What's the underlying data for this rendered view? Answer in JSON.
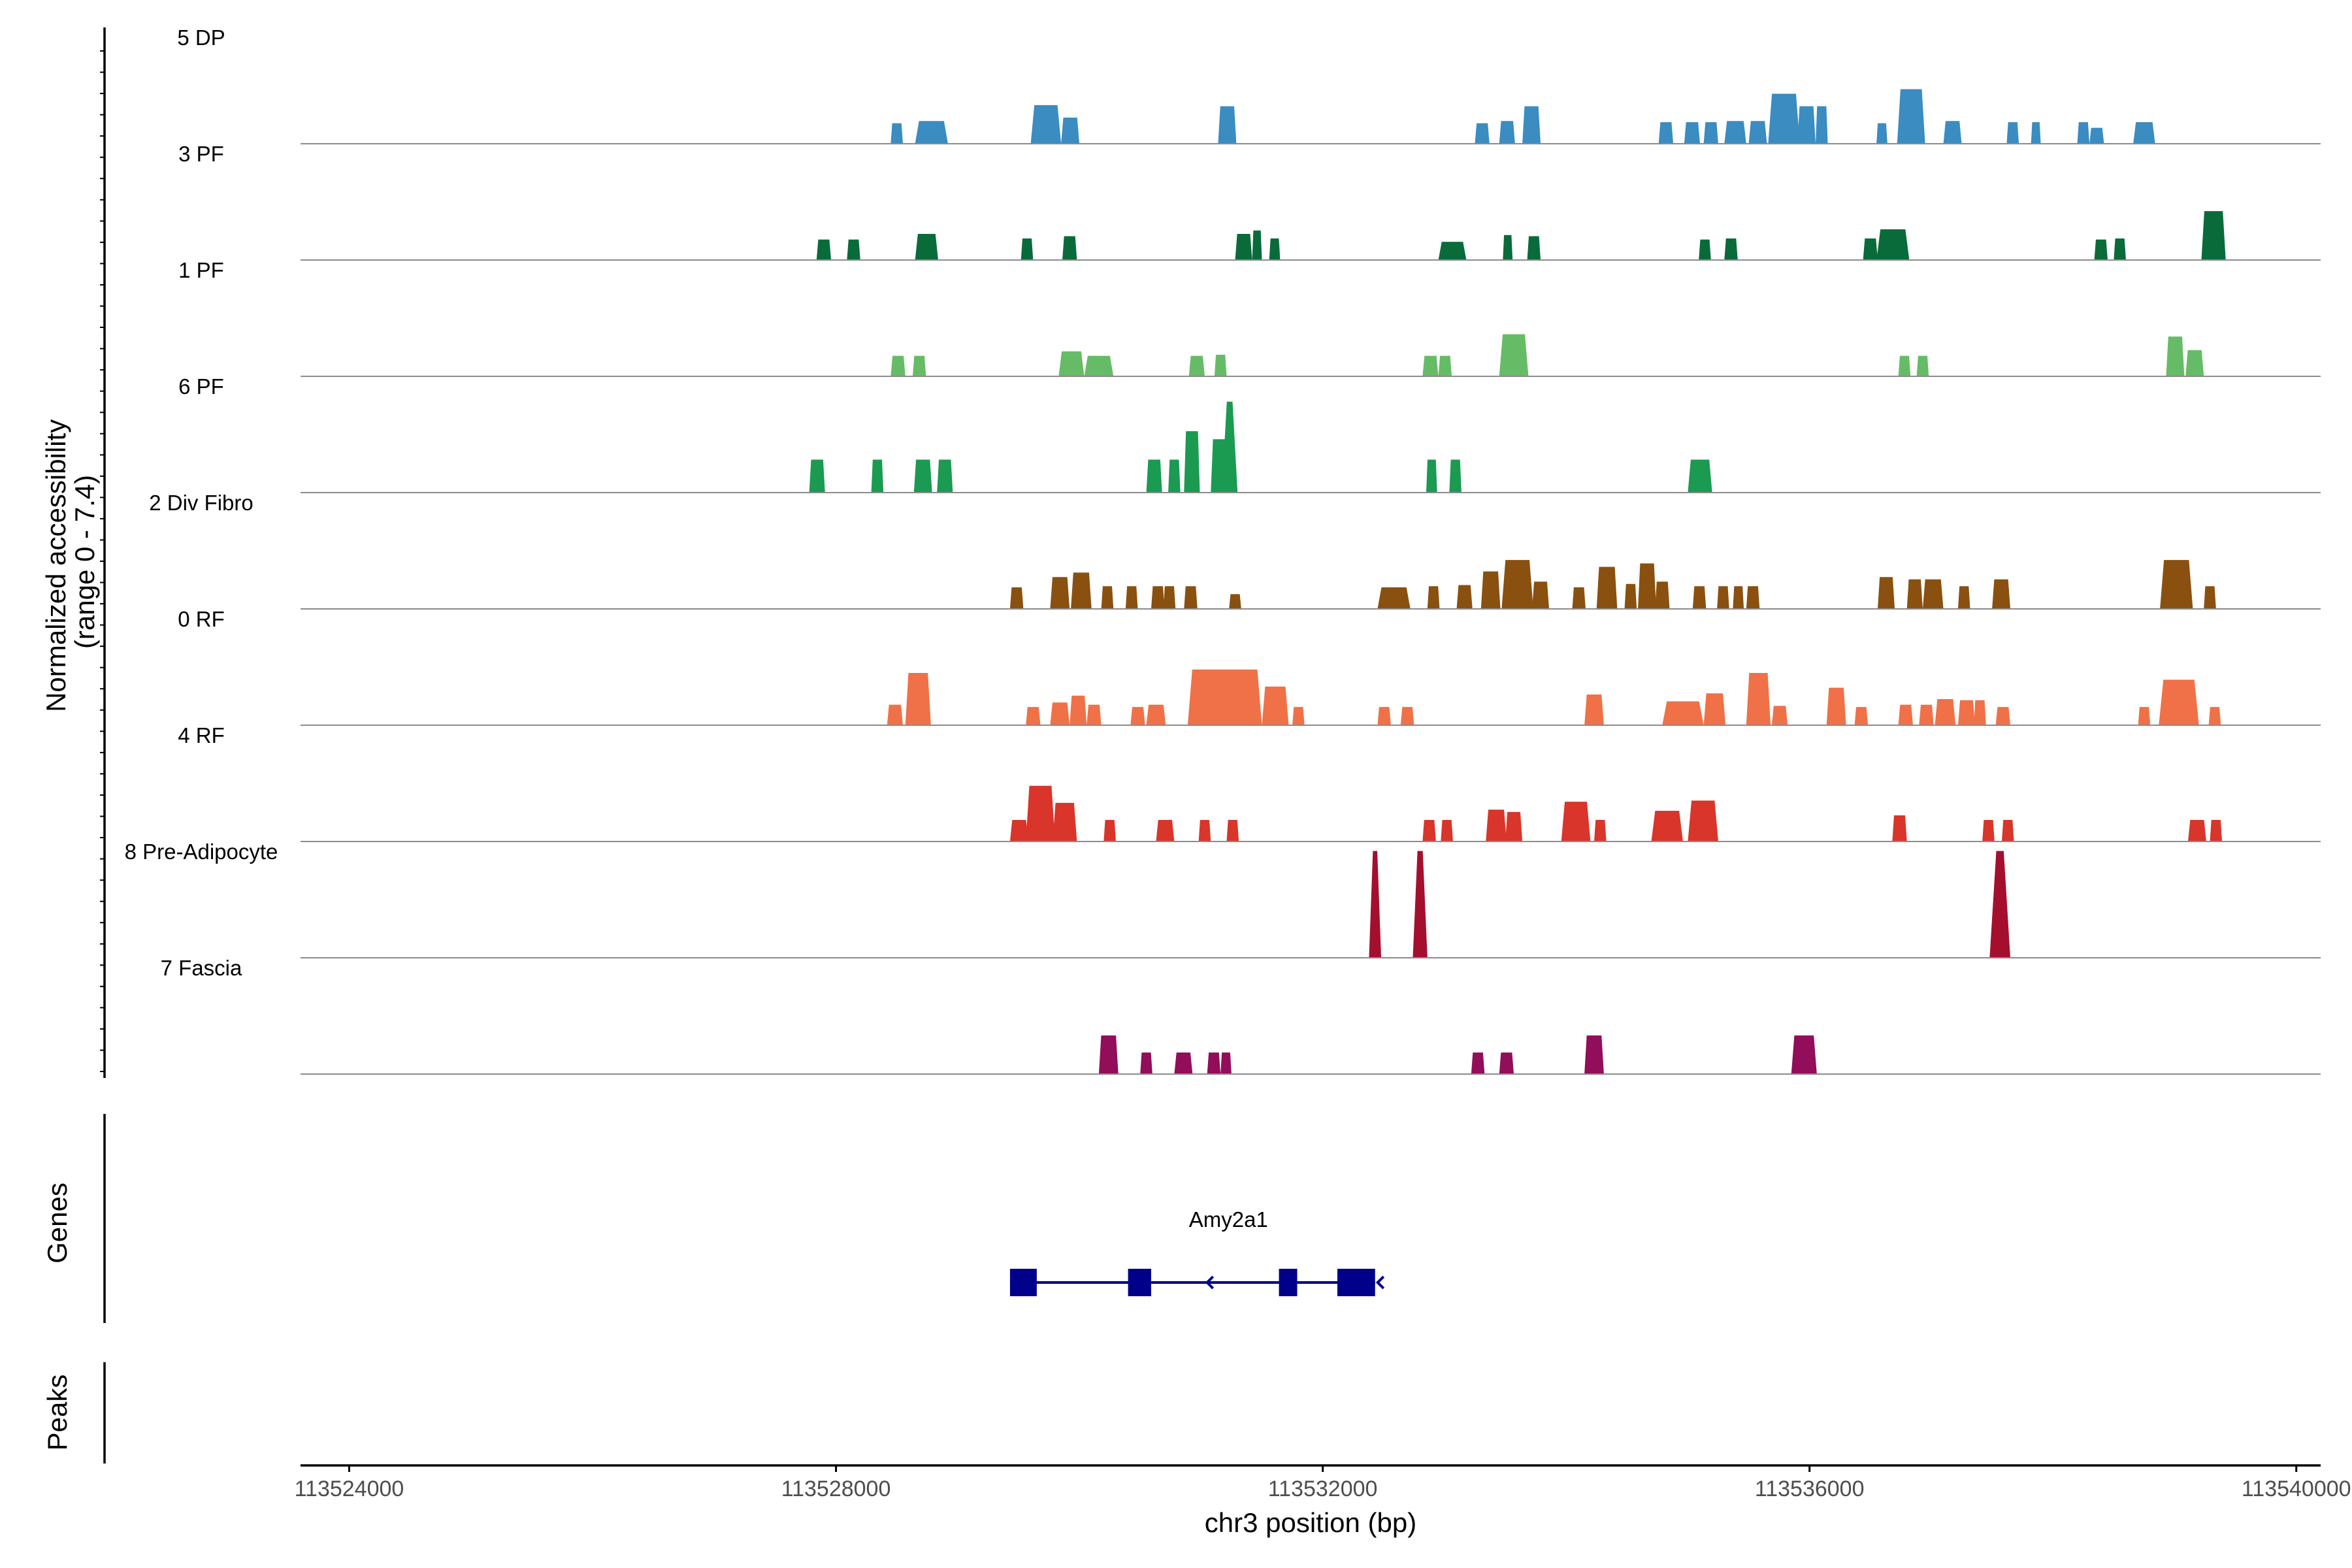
{
  "chart_data": {
    "type": "area",
    "title": "",
    "ylabel": "Normalized accessibility\n(range 0 - 7.4)",
    "ylabel_lines": [
      "Normalized accessibility",
      "(range 0 - 7.4)"
    ],
    "ylim": [
      0,
      7.4
    ],
    "xlabel": "chr3 position (bp)",
    "xlim": [
      113523600,
      113540200
    ],
    "x_ticks": [
      113524000,
      113528000,
      113532000,
      113536000,
      113540000
    ],
    "x_tick_labels": [
      "113524000",
      "113528000",
      "113532000",
      "113536000",
      "113540000"
    ],
    "series": [
      {
        "name": "5 DP",
        "color": "#3a8cc1",
        "peaks": [
          [
            113528450,
            113528550,
            1.8
          ],
          [
            113528650,
            113528920,
            2.0
          ],
          [
            113529600,
            113529850,
            3.4
          ],
          [
            113529850,
            113530000,
            2.3
          ],
          [
            113531140,
            113531290,
            3.3
          ],
          [
            113533250,
            113533370,
            1.8
          ],
          [
            113533450,
            113533580,
            2.0
          ],
          [
            113533640,
            113533790,
            3.3
          ],
          [
            113534760,
            113534880,
            1.9
          ],
          [
            113534970,
            113535100,
            1.9
          ],
          [
            113535130,
            113535250,
            1.9
          ],
          [
            113535300,
            113535480,
            2.0
          ],
          [
            113535500,
            113535650,
            2.0
          ],
          [
            113535660,
            113535920,
            4.4
          ],
          [
            113535900,
            113536050,
            3.3
          ],
          [
            113536050,
            113536150,
            3.3
          ],
          [
            113536550,
            113536640,
            1.8
          ],
          [
            113536720,
            113536950,
            4.8
          ],
          [
            113537100,
            113537250,
            2.0
          ],
          [
            113537620,
            113537720,
            1.9
          ],
          [
            113537820,
            113537900,
            1.9
          ],
          [
            113538200,
            113538300,
            1.9
          ],
          [
            113538300,
            113538420,
            1.4
          ],
          [
            113538660,
            113538840,
            1.9
          ]
        ]
      },
      {
        "name": "3 PF",
        "color": "#0a6b3a",
        "peaks": [
          [
            113527840,
            113527960,
            1.8
          ],
          [
            113528090,
            113528200,
            1.8
          ],
          [
            113528650,
            113528840,
            2.3
          ],
          [
            113529520,
            113529620,
            1.9
          ],
          [
            113529860,
            113529980,
            2.1
          ],
          [
            113531280,
            113531420,
            2.3
          ],
          [
            113531420,
            113531500,
            2.6
          ],
          [
            113531560,
            113531650,
            1.9
          ],
          [
            113532950,
            113533180,
            1.6
          ],
          [
            113533480,
            113533560,
            2.2
          ],
          [
            113533680,
            113533790,
            2.1
          ],
          [
            113535090,
            113535190,
            1.8
          ],
          [
            113535300,
            113535410,
            1.9
          ],
          [
            113536440,
            113536560,
            1.9
          ],
          [
            113536550,
            113536820,
            2.7
          ],
          [
            113538340,
            113538450,
            1.8
          ],
          [
            113538500,
            113538600,
            1.9
          ],
          [
            113539220,
            113539420,
            4.3
          ]
        ]
      },
      {
        "name": "1 PF",
        "color": "#66bc66",
        "peaks": [
          [
            113528450,
            113528570,
            1.8
          ],
          [
            113528630,
            113528740,
            1.8
          ],
          [
            113529830,
            113530040,
            2.2
          ],
          [
            113530040,
            113530280,
            1.8
          ],
          [
            113530900,
            113531030,
            1.8
          ],
          [
            113531110,
            113531210,
            1.9
          ],
          [
            113532820,
            113532950,
            1.8
          ],
          [
            113532950,
            113533060,
            1.8
          ],
          [
            113533450,
            113533690,
            3.7
          ],
          [
            113536730,
            113536830,
            1.8
          ],
          [
            113536880,
            113536980,
            1.8
          ],
          [
            113538930,
            113539080,
            3.5
          ],
          [
            113539090,
            113539240,
            2.3
          ]
        ]
      },
      {
        "name": "6 PF",
        "color": "#1b9a52",
        "peaks": [
          [
            113527780,
            113527910,
            2.9
          ],
          [
            113528290,
            113528390,
            2.9
          ],
          [
            113528640,
            113528790,
            2.9
          ],
          [
            113528830,
            113528960,
            2.9
          ],
          [
            113530550,
            113530680,
            2.9
          ],
          [
            113530730,
            113530830,
            2.9
          ],
          [
            113530860,
            113530990,
            5.4
          ],
          [
            113531080,
            113531230,
            4.7
          ],
          [
            113531170,
            113531300,
            8.0
          ],
          [
            113532850,
            113532940,
            2.9
          ],
          [
            113533040,
            113533140,
            2.9
          ],
          [
            113535000,
            113535200,
            2.9
          ]
        ]
      },
      {
        "name": "2 Div Fibro",
        "color": "#8a5010",
        "peaks": [
          [
            113529430,
            113529540,
            1.9
          ],
          [
            113529760,
            113529920,
            2.8
          ],
          [
            113529930,
            113530100,
            3.2
          ],
          [
            113530180,
            113530280,
            2.0
          ],
          [
            113530380,
            113530480,
            2.0
          ],
          [
            113530590,
            113530700,
            2.0
          ],
          [
            113530690,
            113530790,
            2.0
          ],
          [
            113530860,
            113530970,
            2.0
          ],
          [
            113531230,
            113531330,
            1.3
          ],
          [
            113532450,
            113532720,
            1.9
          ],
          [
            113532860,
            113532960,
            2.0
          ],
          [
            113533100,
            113533230,
            2.1
          ],
          [
            113533300,
            113533460,
            3.3
          ],
          [
            113533470,
            113533730,
            4.3
          ],
          [
            113533720,
            113533860,
            2.4
          ],
          [
            113534050,
            113534160,
            1.9
          ],
          [
            113534250,
            113534420,
            3.7
          ],
          [
            113534480,
            113534580,
            2.2
          ],
          [
            113534590,
            113534740,
            4.0
          ],
          [
            113534730,
            113534850,
            2.4
          ],
          [
            113535040,
            113535150,
            2.0
          ],
          [
            113535240,
            113535340,
            2.0
          ],
          [
            113535370,
            113535460,
            2.0
          ],
          [
            113535480,
            113535590,
            2.0
          ],
          [
            113536560,
            113536700,
            2.8
          ],
          [
            113536800,
            113536930,
            2.6
          ],
          [
            113536930,
            113537100,
            2.6
          ],
          [
            113537220,
            113537320,
            2.0
          ],
          [
            113537500,
            113537650,
            2.6
          ],
          [
            113538880,
            113539150,
            4.3
          ],
          [
            113539240,
            113539340,
            2.0
          ]
        ]
      },
      {
        "name": "0 RF",
        "color": "#f07147",
        "peaks": [
          [
            113528420,
            113528550,
            1.8
          ],
          [
            113528570,
            113528780,
            4.6
          ],
          [
            113529560,
            113529680,
            1.6
          ],
          [
            113529760,
            113529920,
            2.0
          ],
          [
            113529920,
            113530060,
            2.6
          ],
          [
            113530060,
            113530180,
            1.8
          ],
          [
            113530420,
            113530540,
            1.6
          ],
          [
            113530550,
            113530710,
            1.8
          ],
          [
            113530890,
            113531500,
            4.9
          ],
          [
            113531500,
            113531720,
            3.4
          ],
          [
            113531750,
            113531850,
            1.6
          ],
          [
            113532450,
            113532560,
            1.6
          ],
          [
            113532640,
            113532750,
            1.6
          ],
          [
            113534150,
            113534310,
            2.7
          ],
          [
            113534790,
            113535130,
            2.1
          ],
          [
            113535130,
            113535310,
            2.8
          ],
          [
            113535480,
            113535680,
            4.6
          ],
          [
            113535690,
            113535820,
            1.7
          ],
          [
            113536140,
            113536300,
            3.3
          ],
          [
            113536370,
            113536480,
            1.6
          ],
          [
            113536730,
            113536850,
            1.8
          ],
          [
            113536900,
            113537020,
            1.8
          ],
          [
            113537030,
            113537200,
            2.3
          ],
          [
            113537220,
            113537360,
            2.2
          ],
          [
            113537350,
            113537450,
            2.2
          ],
          [
            113537530,
            113537650,
            1.6
          ],
          [
            113538700,
            113538800,
            1.6
          ],
          [
            113538870,
            113539200,
            4.0
          ],
          [
            113539280,
            113539380,
            1.6
          ]
        ]
      },
      {
        "name": "4 RF",
        "color": "#d9352a",
        "peaks": [
          [
            113529430,
            113529580,
            1.9
          ],
          [
            113529560,
            113529800,
            4.9
          ],
          [
            113529780,
            113529980,
            3.4
          ],
          [
            113530200,
            113530300,
            1.9
          ],
          [
            113530630,
            113530780,
            1.9
          ],
          [
            113530980,
            113531080,
            1.9
          ],
          [
            113531210,
            113531310,
            1.9
          ],
          [
            113532820,
            113532930,
            1.9
          ],
          [
            113532970,
            113533070,
            1.9
          ],
          [
            113533340,
            113533510,
            2.8
          ],
          [
            113533500,
            113533640,
            2.6
          ],
          [
            113533960,
            113534200,
            3.5
          ],
          [
            113534230,
            113534330,
            1.9
          ],
          [
            113534700,
            113534960,
            2.7
          ],
          [
            113535000,
            113535250,
            3.6
          ],
          [
            113536680,
            113536800,
            2.3
          ],
          [
            113537420,
            113537520,
            1.9
          ],
          [
            113537580,
            113537680,
            1.9
          ],
          [
            113539110,
            113539260,
            1.9
          ],
          [
            113539290,
            113539390,
            1.9
          ]
        ]
      },
      {
        "name": "8 Pre-Adipocyte",
        "color": "#a50f2e",
        "peaks": [
          [
            113532380,
            113532480,
            9.4
          ],
          [
            113532740,
            113532860,
            9.4
          ],
          [
            113537480,
            113537650,
            9.4
          ]
        ]
      },
      {
        "name": "7 Fascia",
        "color": "#920d5a",
        "peaks": [
          [
            113530160,
            113530320,
            3.4
          ],
          [
            113530500,
            113530600,
            1.9
          ],
          [
            113530780,
            113530930,
            1.9
          ],
          [
            113531050,
            113531160,
            1.9
          ],
          [
            113531160,
            113531250,
            1.9
          ],
          [
            113533220,
            113533330,
            1.9
          ],
          [
            113533450,
            113533570,
            1.9
          ],
          [
            113534150,
            113534310,
            3.4
          ],
          [
            113535850,
            113536060,
            3.4
          ]
        ]
      }
    ],
    "gene_track": {
      "title": "Genes",
      "gene": "Amy2a1",
      "color": "#00008b",
      "start": 113529430,
      "end": 113532430,
      "strand": "-",
      "exons": [
        [
          113529430,
          113529650
        ],
        [
          113530400,
          113530590
        ],
        [
          113531640,
          113531790
        ],
        [
          113532120,
          113532430
        ]
      ]
    },
    "peaks_track": {
      "title": "Peaks"
    }
  }
}
